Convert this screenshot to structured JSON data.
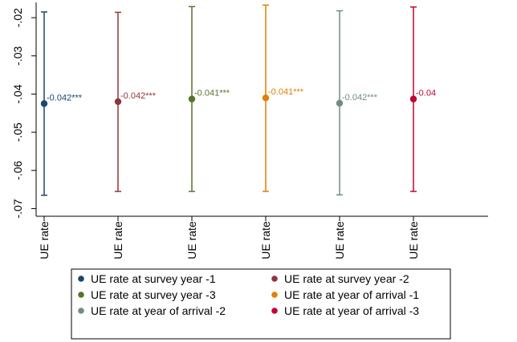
{
  "chart_data": {
    "type": "scatter",
    "categories": [
      "UE rate",
      "UE rate",
      "UE rate",
      "UE rate",
      "UE rate",
      "UE rate"
    ],
    "ylim": [
      -0.072,
      -0.016
    ],
    "yticks": [
      -0.07,
      -0.06,
      -0.05,
      -0.04,
      -0.03,
      -0.02
    ],
    "ytick_labels": [
      "-.07",
      "-.06",
      "-.05",
      "-.04",
      "-.03",
      "-.02"
    ],
    "grid": false,
    "legend_position": "bottom",
    "series": [
      {
        "name": "UE rate at survey year -1",
        "color": "#1a476f",
        "value": -0.0425,
        "ci_low": -0.0665,
        "ci_high": -0.0185,
        "label": "-0.042***"
      },
      {
        "name": "UE rate at survey year -2",
        "color": "#90353b",
        "value": -0.042,
        "ci_low": -0.0655,
        "ci_high": -0.0186,
        "label": "-0.042***"
      },
      {
        "name": "UE rate at survey year -3",
        "color": "#55752f",
        "value": -0.0413,
        "ci_low": -0.0655,
        "ci_high": -0.0171,
        "label": "-0.041***"
      },
      {
        "name": "UE rate at year of arrival -1",
        "color": "#e37e00",
        "value": -0.041,
        "ci_low": -0.0655,
        "ci_high": -0.0167,
        "label": "-0.041***"
      },
      {
        "name": "UE rate at year of arrival -2",
        "color": "#6e8e84",
        "value": -0.0424,
        "ci_low": -0.0664,
        "ci_high": -0.0182,
        "label": "-0.042***"
      },
      {
        "name": "UE rate at year of arrival -3",
        "color": "#c10534",
        "value": -0.0413,
        "ci_low": -0.0655,
        "ci_high": -0.0172,
        "label": "-0.04"
      }
    ]
  }
}
